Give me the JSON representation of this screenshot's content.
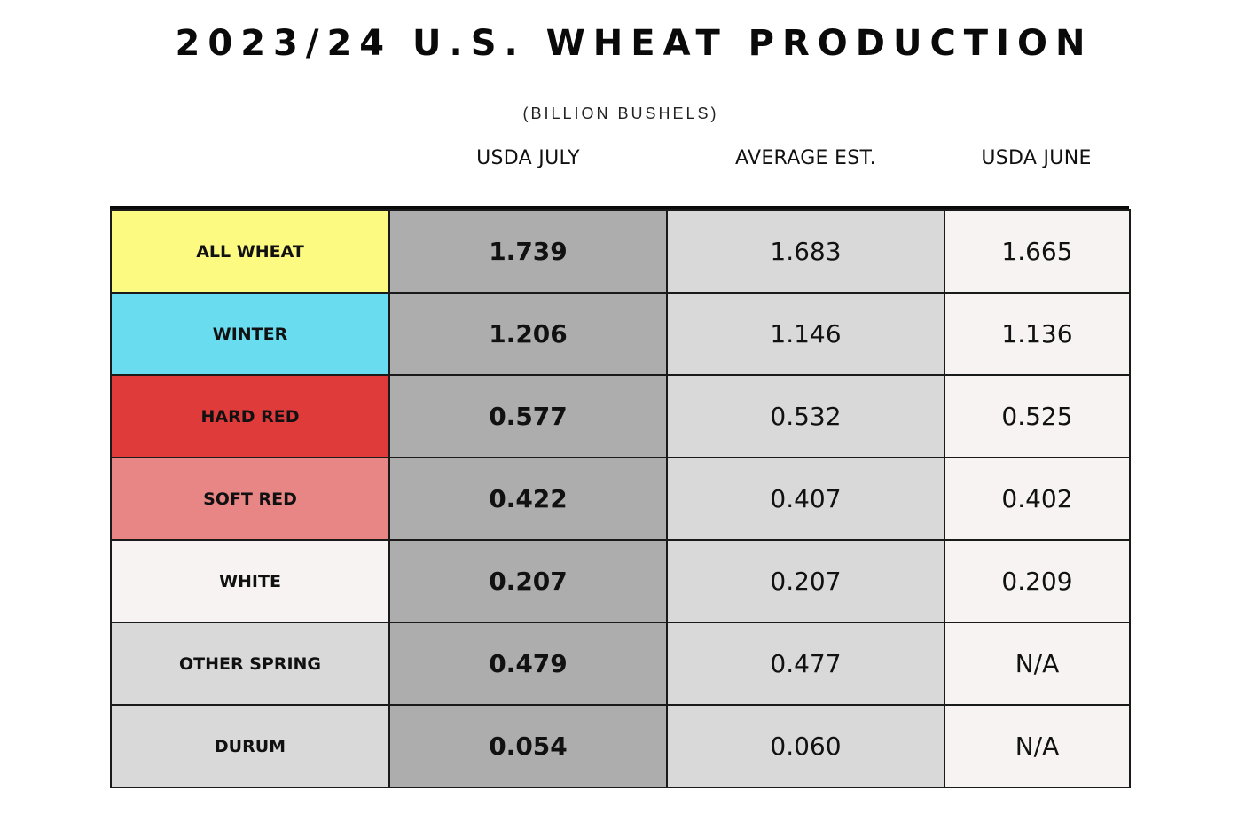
{
  "chart_data": {
    "type": "table",
    "title": "2023/24 U.S. WHEAT PRODUCTION",
    "subtitle": "(BILLION BUSHELS)",
    "columns": [
      "USDA JULY",
      "AVERAGE EST.",
      "USDA JUNE"
    ],
    "rows": [
      {
        "label": "ALL WHEAT",
        "color": "#fdfa82",
        "values": [
          "1.739",
          "1.683",
          "1.665"
        ]
      },
      {
        "label": "WINTER",
        "color": "#69dcf0",
        "values": [
          "1.206",
          "1.146",
          "1.136"
        ]
      },
      {
        "label": "HARD RED",
        "color": "#df3b3b",
        "values": [
          "0.577",
          "0.532",
          "0.525"
        ]
      },
      {
        "label": "SOFT RED",
        "color": "#e88585",
        "values": [
          "0.422",
          "0.407",
          "0.402"
        ]
      },
      {
        "label": "WHITE",
        "color": "#f6f3f2",
        "values": [
          "0.207",
          "0.207",
          "0.209"
        ]
      },
      {
        "label": "OTHER SPRING",
        "color": "#d9d9d9",
        "values": [
          "0.479",
          "0.477",
          "N/A"
        ]
      },
      {
        "label": "DURUM",
        "color": "#d9d9d9",
        "values": [
          "0.054",
          "0.060",
          "N/A"
        ]
      }
    ],
    "column_colors": [
      "#adadad",
      "#d9d9d9",
      "#f6f3f2"
    ]
  }
}
